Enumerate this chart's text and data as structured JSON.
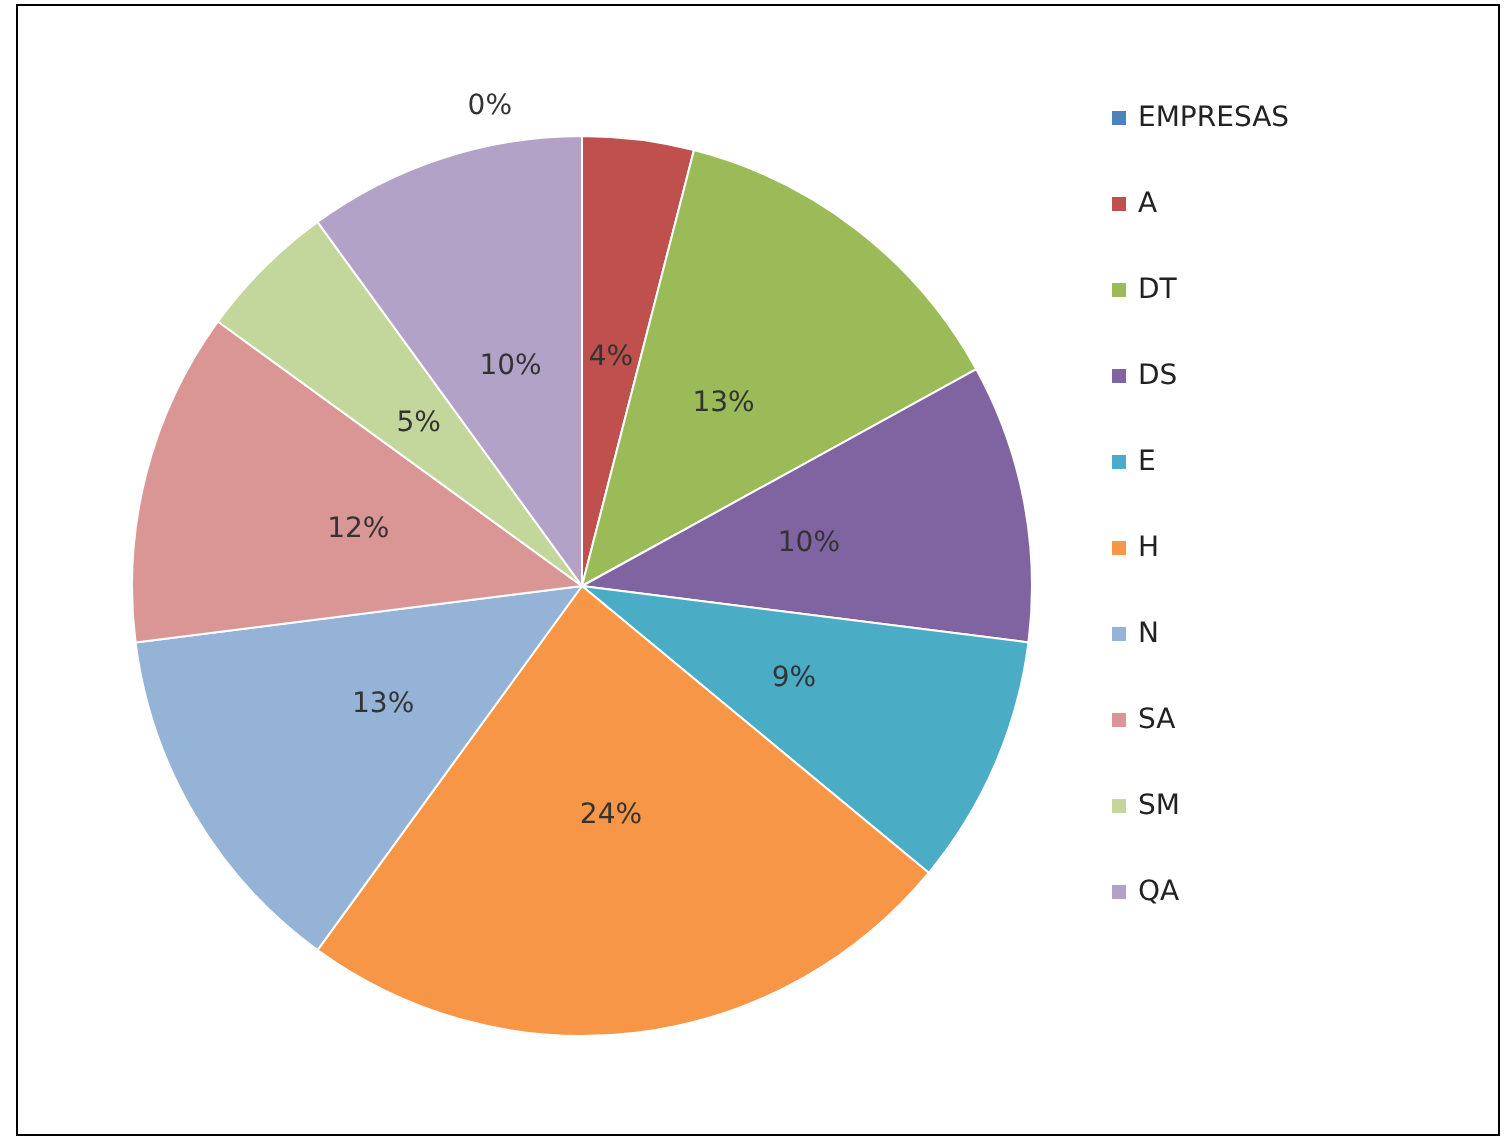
{
  "chart_data": {
    "type": "pie",
    "categories": [
      "EMPRESAS",
      "A",
      "DT",
      "DS",
      "E",
      "H",
      "N",
      "SA",
      "SM",
      "QA"
    ],
    "values": [
      0,
      4,
      13,
      10,
      9,
      24,
      13,
      12,
      5,
      10
    ],
    "value_labels": [
      "0%",
      "4%",
      "13%",
      "10%",
      "9%",
      "24%",
      "13%",
      "12%",
      "5%",
      "10%"
    ],
    "colors": [
      "#4f81bd",
      "#c0504d",
      "#9bbb59",
      "#8064a2",
      "#4bacc6",
      "#f79646",
      "#95b3d7",
      "#d99694",
      "#c3d69b",
      "#b3a2c7"
    ],
    "legend": "right"
  }
}
